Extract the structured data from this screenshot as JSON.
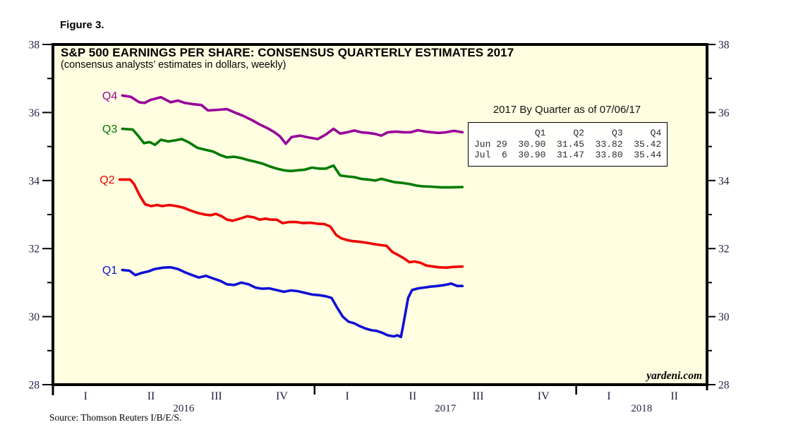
{
  "figure_label": "Figure 3.",
  "title": "S&P 500 EARNINGS PER SHARE: CONSENSUS QUARTERLY ESTIMATES 2017",
  "subtitle": "(consensus analysts’ estimates in dollars, weekly)",
  "watermark": "yardeni.com",
  "source": "Source: Thomson Reuters I/B/E/S.",
  "colors": {
    "plot_background": "#fffee1",
    "frame": "#000000",
    "axis_text": "#222244",
    "q1_blue": "#0f0fd6",
    "q2_red": "#ee0000",
    "q3_green": "#007b00",
    "q4_purple": "#990099"
  },
  "table": {
    "title": "2017 By Quarter as of 07/06/17",
    "columns": [
      "",
      "Q1",
      "Q2",
      "Q3",
      "Q4"
    ],
    "rows": [
      {
        "label": "Jun 29",
        "values": [
          "30.90",
          "31.45",
          "33.82",
          "35.42"
        ]
      },
      {
        "label": "Jul  6",
        "values": [
          "30.90",
          "31.47",
          "33.80",
          "35.44"
        ]
      }
    ]
  },
  "chart_data": {
    "type": "line",
    "title": "S&P 500 EARNINGS PER SHARE: CONSENSUS QUARTERLY ESTIMATES 2017",
    "ylabel": "consensus analysts estimates in dollars",
    "ylim": [
      28,
      38
    ],
    "y_major_ticks": [
      28,
      30,
      32,
      34,
      36,
      38
    ],
    "y_minor_ticks": [
      29,
      31,
      33,
      35,
      37
    ],
    "x_unit": "quarters from 2016-Q1, axis spans 2016-Q1 through 2018-Q2 (0 to 10)",
    "x_quarter_labels": [
      {
        "label": "I",
        "t": 0.5
      },
      {
        "label": "II",
        "t": 1.5
      },
      {
        "label": "III",
        "t": 2.5
      },
      {
        "label": "IV",
        "t": 3.5
      },
      {
        "label": "I",
        "t": 4.5
      },
      {
        "label": "II",
        "t": 5.5
      },
      {
        "label": "III",
        "t": 6.5
      },
      {
        "label": "IV",
        "t": 7.5
      },
      {
        "label": "I",
        "t": 8.5
      },
      {
        "label": "II",
        "t": 9.5
      }
    ],
    "x_year_labels": [
      {
        "label": "2016",
        "t": 2
      },
      {
        "label": "2017",
        "t": 6
      },
      {
        "label": "2018",
        "t": 9
      }
    ],
    "year_boundary_ticks": [
      4,
      8
    ],
    "grid": false,
    "legend_position": "inline-left-of-lines",
    "series": [
      {
        "name": "Q4",
        "color_key": "q4_purple",
        "color": "#990099",
        "points": [
          [
            1.06,
            36.5
          ],
          [
            1.19,
            36.46
          ],
          [
            1.32,
            36.3
          ],
          [
            1.4,
            36.28
          ],
          [
            1.49,
            36.37
          ],
          [
            1.65,
            36.45
          ],
          [
            1.8,
            36.3
          ],
          [
            1.91,
            36.35
          ],
          [
            2.02,
            36.28
          ],
          [
            2.13,
            36.25
          ],
          [
            2.27,
            36.22
          ],
          [
            2.37,
            36.06
          ],
          [
            2.54,
            36.08
          ],
          [
            2.66,
            36.1
          ],
          [
            2.78,
            36.0
          ],
          [
            2.91,
            35.9
          ],
          [
            3.04,
            35.78
          ],
          [
            3.16,
            35.65
          ],
          [
            3.27,
            35.55
          ],
          [
            3.38,
            35.43
          ],
          [
            3.47,
            35.3
          ],
          [
            3.56,
            35.08
          ],
          [
            3.65,
            35.28
          ],
          [
            3.78,
            35.32
          ],
          [
            3.9,
            35.27
          ],
          [
            4.05,
            35.22
          ],
          [
            4.17,
            35.35
          ],
          [
            4.29,
            35.52
          ],
          [
            4.39,
            35.38
          ],
          [
            4.5,
            35.42
          ],
          [
            4.61,
            35.47
          ],
          [
            4.71,
            35.42
          ],
          [
            4.82,
            35.4
          ],
          [
            4.93,
            35.37
          ],
          [
            5.02,
            35.32
          ],
          [
            5.12,
            35.42
          ],
          [
            5.25,
            35.44
          ],
          [
            5.36,
            35.42
          ],
          [
            5.47,
            35.42
          ],
          [
            5.58,
            35.48
          ],
          [
            5.69,
            35.44
          ],
          [
            5.79,
            35.42
          ],
          [
            5.9,
            35.4
          ],
          [
            6.01,
            35.42
          ],
          [
            6.13,
            35.46
          ],
          [
            6.26,
            35.42
          ]
        ]
      },
      {
        "name": "Q3",
        "color_key": "q3_green",
        "color": "#007b00",
        "points": [
          [
            1.06,
            35.52
          ],
          [
            1.22,
            35.5
          ],
          [
            1.31,
            35.3
          ],
          [
            1.39,
            35.1
          ],
          [
            1.48,
            35.13
          ],
          [
            1.56,
            35.05
          ],
          [
            1.65,
            35.2
          ],
          [
            1.76,
            35.15
          ],
          [
            1.87,
            35.18
          ],
          [
            1.97,
            35.22
          ],
          [
            2.08,
            35.12
          ],
          [
            2.21,
            34.96
          ],
          [
            2.34,
            34.9
          ],
          [
            2.45,
            34.85
          ],
          [
            2.56,
            34.75
          ],
          [
            2.66,
            34.68
          ],
          [
            2.77,
            34.7
          ],
          [
            2.88,
            34.66
          ],
          [
            2.99,
            34.6
          ],
          [
            3.1,
            34.55
          ],
          [
            3.2,
            34.5
          ],
          [
            3.31,
            34.42
          ],
          [
            3.42,
            34.35
          ],
          [
            3.53,
            34.3
          ],
          [
            3.64,
            34.28
          ],
          [
            3.74,
            34.3
          ],
          [
            3.85,
            34.32
          ],
          [
            3.96,
            34.38
          ],
          [
            4.07,
            34.35
          ],
          [
            4.17,
            34.35
          ],
          [
            4.29,
            34.44
          ],
          [
            4.39,
            34.15
          ],
          [
            4.5,
            34.12
          ],
          [
            4.61,
            34.1
          ],
          [
            4.71,
            34.05
          ],
          [
            4.82,
            34.03
          ],
          [
            4.93,
            34.0
          ],
          [
            5.02,
            34.05
          ],
          [
            5.12,
            34.0
          ],
          [
            5.23,
            33.95
          ],
          [
            5.34,
            33.93
          ],
          [
            5.45,
            33.9
          ],
          [
            5.56,
            33.85
          ],
          [
            5.66,
            33.83
          ],
          [
            5.79,
            33.82
          ],
          [
            5.93,
            33.8
          ],
          [
            6.09,
            33.8
          ],
          [
            6.26,
            33.81
          ]
        ]
      },
      {
        "name": "Q2",
        "color_key": "q2_red",
        "color": "#ee0000",
        "points": [
          [
            1.02,
            34.03
          ],
          [
            1.18,
            34.03
          ],
          [
            1.24,
            33.9
          ],
          [
            1.33,
            33.55
          ],
          [
            1.41,
            33.3
          ],
          [
            1.5,
            33.25
          ],
          [
            1.59,
            33.28
          ],
          [
            1.67,
            33.25
          ],
          [
            1.78,
            33.28
          ],
          [
            1.89,
            33.25
          ],
          [
            2.0,
            33.2
          ],
          [
            2.1,
            33.12
          ],
          [
            2.21,
            33.05
          ],
          [
            2.32,
            33.0
          ],
          [
            2.41,
            32.98
          ],
          [
            2.49,
            33.02
          ],
          [
            2.58,
            32.95
          ],
          [
            2.66,
            32.85
          ],
          [
            2.75,
            32.82
          ],
          [
            2.86,
            32.88
          ],
          [
            2.97,
            32.95
          ],
          [
            3.07,
            32.92
          ],
          [
            3.16,
            32.85
          ],
          [
            3.25,
            32.88
          ],
          [
            3.33,
            32.85
          ],
          [
            3.42,
            32.85
          ],
          [
            3.51,
            32.75
          ],
          [
            3.61,
            32.78
          ],
          [
            3.72,
            32.78
          ],
          [
            3.83,
            32.75
          ],
          [
            3.94,
            32.76
          ],
          [
            4.05,
            32.73
          ],
          [
            4.15,
            32.72
          ],
          [
            4.24,
            32.65
          ],
          [
            4.33,
            32.4
          ],
          [
            4.41,
            32.3
          ],
          [
            4.5,
            32.25
          ],
          [
            4.58,
            32.22
          ],
          [
            4.69,
            32.2
          ],
          [
            4.8,
            32.17
          ],
          [
            4.91,
            32.13
          ],
          [
            5.02,
            32.1
          ],
          [
            5.1,
            32.08
          ],
          [
            5.19,
            31.9
          ],
          [
            5.27,
            31.82
          ],
          [
            5.36,
            31.72
          ],
          [
            5.45,
            31.6
          ],
          [
            5.53,
            31.62
          ],
          [
            5.62,
            31.58
          ],
          [
            5.71,
            31.5
          ],
          [
            5.79,
            31.48
          ],
          [
            5.9,
            31.45
          ],
          [
            6.01,
            31.44
          ],
          [
            6.12,
            31.46
          ],
          [
            6.26,
            31.47
          ]
        ]
      },
      {
        "name": "Q1",
        "color_key": "q1_blue",
        "color": "#0f0fd6",
        "points": [
          [
            1.06,
            31.37
          ],
          [
            1.17,
            31.35
          ],
          [
            1.26,
            31.22
          ],
          [
            1.35,
            31.28
          ],
          [
            1.46,
            31.33
          ],
          [
            1.56,
            31.4
          ],
          [
            1.69,
            31.44
          ],
          [
            1.8,
            31.45
          ],
          [
            1.91,
            31.4
          ],
          [
            2.02,
            31.3
          ],
          [
            2.13,
            31.22
          ],
          [
            2.23,
            31.15
          ],
          [
            2.34,
            31.2
          ],
          [
            2.45,
            31.12
          ],
          [
            2.56,
            31.05
          ],
          [
            2.66,
            30.95
          ],
          [
            2.77,
            30.93
          ],
          [
            2.88,
            31.0
          ],
          [
            2.99,
            30.95
          ],
          [
            3.1,
            30.85
          ],
          [
            3.2,
            30.82
          ],
          [
            3.31,
            30.83
          ],
          [
            3.42,
            30.78
          ],
          [
            3.53,
            30.73
          ],
          [
            3.64,
            30.77
          ],
          [
            3.74,
            30.75
          ],
          [
            3.85,
            30.7
          ],
          [
            3.96,
            30.65
          ],
          [
            4.07,
            30.63
          ],
          [
            4.17,
            30.6
          ],
          [
            4.26,
            30.55
          ],
          [
            4.35,
            30.25
          ],
          [
            4.43,
            30.0
          ],
          [
            4.52,
            29.85
          ],
          [
            4.61,
            29.8
          ],
          [
            4.69,
            29.72
          ],
          [
            4.78,
            29.65
          ],
          [
            4.87,
            29.6
          ],
          [
            4.95,
            29.58
          ],
          [
            5.04,
            29.52
          ],
          [
            5.12,
            29.45
          ],
          [
            5.21,
            29.42
          ],
          [
            5.27,
            29.45
          ],
          [
            5.32,
            29.4
          ],
          [
            5.36,
            29.8
          ],
          [
            5.43,
            30.55
          ],
          [
            5.49,
            30.78
          ],
          [
            5.58,
            30.83
          ],
          [
            5.66,
            30.85
          ],
          [
            5.77,
            30.88
          ],
          [
            5.88,
            30.9
          ],
          [
            5.99,
            30.93
          ],
          [
            6.09,
            30.97
          ],
          [
            6.18,
            30.9
          ],
          [
            6.26,
            30.9
          ]
        ]
      }
    ]
  }
}
